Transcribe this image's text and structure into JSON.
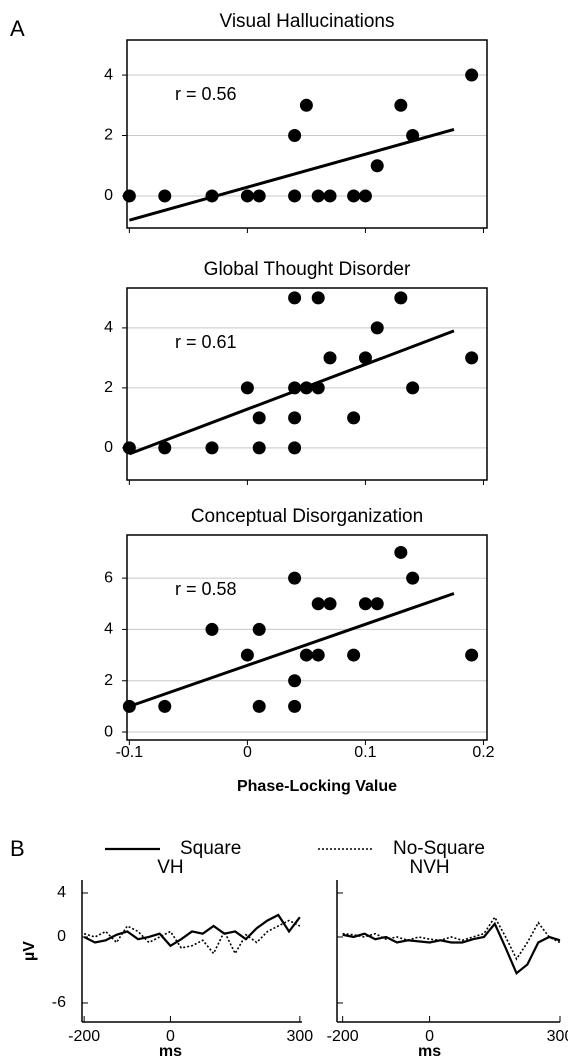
{
  "panel_labels": [
    "A",
    "B"
  ],
  "chart_data": [
    {
      "type": "scatter",
      "title": "Visual Hallucinations",
      "annotation": "r = 0.56",
      "color": "#000000",
      "x": [
        -0.1,
        -0.07,
        -0.03,
        0,
        0.01,
        0.04,
        0.06,
        0.07,
        0.09,
        0.1,
        0.11,
        0.04,
        0.14,
        0.05,
        0.13,
        0.19
      ],
      "values": [
        0,
        0,
        0,
        0,
        0,
        0,
        0,
        0,
        0,
        0,
        1,
        2,
        2,
        3,
        3,
        4
      ],
      "fit": {
        "x": [
          -0.1,
          0.175
        ],
        "values": [
          -0.8,
          2.2
        ]
      },
      "xlim": [
        -0.102,
        0.203
      ],
      "ylim": [
        -1.06,
        5.16
      ],
      "xticks": [
        -0.1,
        0,
        0.1,
        0.2
      ],
      "yticks": [
        0,
        2,
        4
      ],
      "grid": true
    },
    {
      "type": "scatter",
      "title": "Global Thought Disorder",
      "annotation": "r = 0.61",
      "color": "#000000",
      "x": [
        -0.1,
        -0.07,
        -0.03,
        0.01,
        0.04,
        0.01,
        0.04,
        0.09,
        0,
        0.04,
        0.05,
        0.06,
        0.14,
        0.07,
        0.1,
        0.19,
        0.11,
        0.04,
        0.06,
        0.13
      ],
      "values": [
        0,
        0,
        0,
        0,
        0,
        1,
        1,
        1,
        2,
        2,
        2,
        2,
        2,
        3,
        3,
        3,
        4,
        5,
        5,
        5
      ],
      "fit": {
        "x": [
          -0.1,
          0.175
        ],
        "values": [
          -0.2,
          3.9
        ]
      },
      "xlim": [
        -0.102,
        0.203
      ],
      "ylim": [
        -1.07,
        5.33
      ],
      "xticks": [
        -0.1,
        0,
        0.1,
        0.2
      ],
      "yticks": [
        0,
        2,
        4
      ],
      "grid": true
    },
    {
      "type": "scatter",
      "title": "Conceptual Disorganization",
      "annotation": "r = 0.58",
      "color": "#000000",
      "xlabel": "Phase-Locking Value",
      "x": [
        -0.1,
        -0.07,
        0.01,
        0.04,
        0.04,
        0,
        0.05,
        0.06,
        0.09,
        0.19,
        -0.03,
        0.01,
        0.06,
        0.07,
        0.1,
        0.11,
        0.04,
        0.14,
        0.13
      ],
      "values": [
        1,
        1,
        1,
        1,
        2,
        3,
        3,
        3,
        3,
        3,
        4,
        4,
        5,
        5,
        5,
        5,
        6,
        6,
        7
      ],
      "fit": {
        "x": [
          -0.1,
          0.175
        ],
        "values": [
          1,
          5.4
        ]
      },
      "xlim": [
        -0.102,
        0.203
      ],
      "ylim": [
        -0.31,
        7.68
      ],
      "xticks": [
        -0.1,
        0,
        0.1,
        0.2
      ],
      "yticks": [
        0,
        2,
        4,
        6
      ],
      "grid": true
    },
    {
      "type": "line",
      "title": "VH",
      "xlabel": "ms",
      "ylabel": "µV",
      "x": [
        -200,
        -175,
        -150,
        -125,
        -100,
        -75,
        -50,
        -25,
        0,
        25,
        50,
        75,
        100,
        125,
        150,
        175,
        200,
        225,
        250,
        275,
        300
      ],
      "series": [
        {
          "name": "Square",
          "color": "#000000",
          "style": "solid",
          "values": [
            0,
            -0.5,
            -0.3,
            0.2,
            0.5,
            -0.2,
            0,
            0.3,
            -0.8,
            -0.2,
            0.5,
            0.3,
            1,
            0.3,
            0.5,
            -0.2,
            0.8,
            1.5,
            2,
            0.5,
            1.8
          ]
        },
        {
          "name": "No-Square",
          "color": "#000000",
          "style": "dotted",
          "values": [
            0.3,
            0,
            0.5,
            -0.5,
            1,
            0.5,
            -0.5,
            0,
            0.5,
            -1,
            -0.8,
            -0.3,
            -1.5,
            0.5,
            -1.5,
            0.2,
            -0.5,
            0.5,
            1,
            1.5,
            1
          ]
        }
      ],
      "xlim": [
        -205,
        305
      ],
      "ylim": [
        -7.73,
        5.18
      ],
      "xticks": [
        -200,
        0,
        300
      ],
      "yticks": [
        -6,
        0,
        4
      ]
    },
    {
      "type": "line",
      "title": "NVH",
      "xlabel": "ms",
      "x": [
        -200,
        -175,
        -150,
        -125,
        -100,
        -75,
        -50,
        -25,
        0,
        25,
        50,
        75,
        100,
        125,
        150,
        175,
        200,
        225,
        250,
        275,
        300
      ],
      "series": [
        {
          "color": "#000000",
          "style": "solid",
          "values": [
            0.2,
            0,
            0.3,
            -0.2,
            0,
            -0.5,
            -0.3,
            -0.4,
            -0.5,
            -0.3,
            -0.5,
            -0.5,
            -0.2,
            0,
            1.2,
            -1,
            -3.3,
            -2.5,
            -0.5,
            0,
            -0.3
          ]
        },
        {
          "color": "#000000",
          "style": "dotted",
          "values": [
            0.3,
            0.2,
            0,
            0.3,
            -0.2,
            0,
            -0.3,
            0,
            -0.2,
            -0.3,
            0,
            -0.3,
            0,
            0.3,
            1.8,
            0,
            -2,
            -0.5,
            1.3,
            0,
            -0.5
          ]
        }
      ],
      "xlim": [
        -213,
        300
      ],
      "ylim": [
        -7.73,
        5.18
      ],
      "xticks": [
        -200,
        0,
        300
      ],
      "yticks": [
        -6,
        0,
        4
      ]
    }
  ]
}
